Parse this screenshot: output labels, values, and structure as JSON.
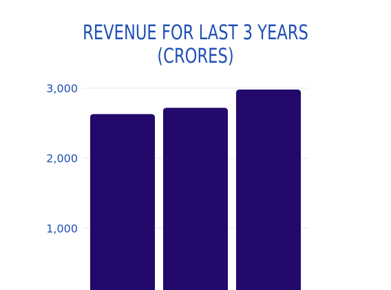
{
  "chart_data": {
    "type": "bar",
    "title": "REVENUE FOR LAST 3 YEARS\n(CRORES)",
    "categories": [
      "",
      "",
      ""
    ],
    "values": [
      2630,
      2720,
      2980
    ],
    "ylim": [
      0,
      3000
    ],
    "yticks": [
      {
        "value": 1000,
        "label": "1,000"
      },
      {
        "value": 2000,
        "label": "2,000"
      },
      {
        "value": 3000,
        "label": "3,000"
      }
    ],
    "grid": true,
    "legend": "none",
    "bar_color": "#22096b",
    "text_color": "#1f4fb4"
  }
}
